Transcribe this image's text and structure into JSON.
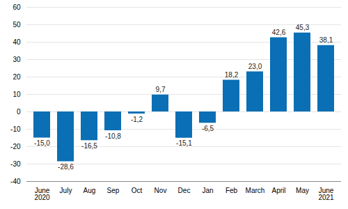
{
  "chart_data": {
    "type": "bar",
    "categories": [
      "June\n2020",
      "July",
      "Aug",
      "Sep",
      "Oct",
      "Nov",
      "Dec",
      "Jan",
      "Feb",
      "March",
      "April",
      "May",
      "June\n2021"
    ],
    "values": [
      -15.0,
      -28.6,
      -16.5,
      -10.8,
      -1.2,
      9.7,
      -15.1,
      -6.5,
      18.2,
      23.0,
      42.6,
      45.3,
      38.1
    ],
    "value_labels": [
      "-15,0",
      "-28,6",
      "-16,5",
      "-10,8",
      "-1,2",
      "9,7",
      "-15,1",
      "-6,5",
      "18,2",
      "23,0",
      "42,6",
      "45,3",
      "38,1"
    ],
    "color": "#0a6fb4",
    "ylim": [
      -40,
      60
    ],
    "yticks": [
      -40,
      -30,
      -20,
      -10,
      0,
      10,
      20,
      30,
      40,
      50,
      60
    ],
    "grid": true,
    "data_labels": true
  }
}
